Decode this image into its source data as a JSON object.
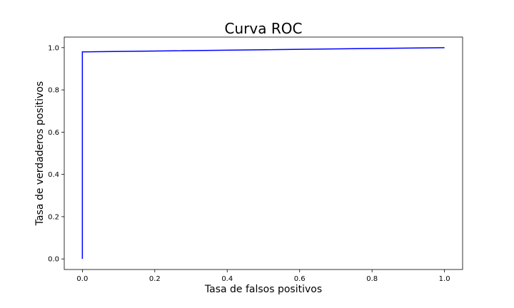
{
  "chart_data": {
    "type": "line",
    "title": "Curva ROC",
    "xlabel": "Tasa de falsos positivos",
    "ylabel": "Tasa de verdaderos positivos",
    "xlim": [
      -0.05,
      1.05
    ],
    "ylim": [
      -0.05,
      1.05
    ],
    "x_ticks": [
      0.0,
      0.2,
      0.4,
      0.6,
      0.8,
      1.0
    ],
    "y_ticks": [
      0.0,
      0.2,
      0.4,
      0.6,
      0.8,
      1.0
    ],
    "x_tick_labels": [
      "0.0",
      "0.2",
      "0.4",
      "0.6",
      "0.8",
      "1.0"
    ],
    "y_tick_labels": [
      "0.0",
      "0.2",
      "0.4",
      "0.6",
      "0.8",
      "1.0"
    ],
    "grid": false,
    "series": [
      {
        "color": "#0000ff",
        "x": [
          0.0,
          0.0,
          1.0
        ],
        "y": [
          0.0,
          0.98,
          1.0
        ]
      }
    ]
  }
}
